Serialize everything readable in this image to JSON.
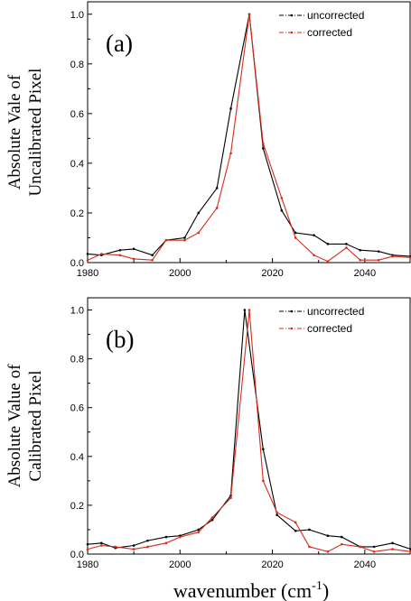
{
  "chart_data": [
    {
      "type": "line",
      "panel_label": "(a)",
      "ylabel_lines": [
        "Absolute Vale of",
        "Uncalibrated Pixel"
      ],
      "xlabel": "",
      "xlim": [
        1980,
        2050
      ],
      "ylim": [
        0,
        1.05
      ],
      "xticks": [
        "1980",
        "2000",
        "2020",
        "2040"
      ],
      "yticks": [
        "0.0",
        "0.2",
        "0.4",
        "0.6",
        "0.8",
        "1.0"
      ],
      "legend_position": "top-right",
      "series": [
        {
          "name": "uncorrected",
          "color": "#000000",
          "x": [
            1980,
            1983,
            1987,
            1990,
            1994,
            1997,
            2001,
            2004,
            2008,
            2011,
            2015,
            2018,
            2022,
            2025,
            2029,
            2032,
            2036,
            2039,
            2043,
            2046,
            2050
          ],
          "y": [
            0.035,
            0.03,
            0.05,
            0.055,
            0.03,
            0.09,
            0.1,
            0.2,
            0.3,
            0.62,
            1.0,
            0.46,
            0.21,
            0.12,
            0.11,
            0.075,
            0.075,
            0.05,
            0.045,
            0.03,
            0.025
          ]
        },
        {
          "name": "corrected",
          "color": "#d62c1a",
          "x": [
            1980,
            1983,
            1987,
            1990,
            1994,
            1997,
            2001,
            2004,
            2008,
            2011,
            2015,
            2018,
            2022,
            2025,
            2029,
            2032,
            2036,
            2039,
            2043,
            2046,
            2050
          ],
          "y": [
            0.01,
            0.035,
            0.03,
            0.015,
            0.01,
            0.09,
            0.09,
            0.12,
            0.22,
            0.44,
            1.0,
            0.48,
            0.26,
            0.1,
            0.03,
            0.005,
            0.06,
            0.01,
            0.01,
            0.025,
            0.02
          ]
        }
      ]
    },
    {
      "type": "line",
      "panel_label": "(b)",
      "ylabel_lines": [
        "Absolute Value of",
        "Calibrated Pixel"
      ],
      "xlabel": "wavenumber (cm",
      "xlabel_sup": "-1",
      "xlabel_end": ")",
      "xlim": [
        1980,
        2050
      ],
      "ylim": [
        0,
        1.05
      ],
      "xticks": [
        "1980",
        "2000",
        "2020",
        "2040"
      ],
      "yticks": [
        "0.0",
        "0.2",
        "0.4",
        "0.6",
        "0.8",
        "1.0"
      ],
      "legend_position": "top-right",
      "series": [
        {
          "name": "uncorrected",
          "color": "#000000",
          "x": [
            1980,
            1983,
            1986,
            1990,
            1993,
            1997,
            2000,
            2004,
            2007,
            2011,
            2014,
            2018,
            2021,
            2025,
            2028,
            2032,
            2035,
            2039,
            2042,
            2046,
            2050
          ],
          "y": [
            0.04,
            0.045,
            0.025,
            0.035,
            0.055,
            0.07,
            0.075,
            0.1,
            0.14,
            0.24,
            1.0,
            0.43,
            0.16,
            0.095,
            0.1,
            0.075,
            0.07,
            0.03,
            0.03,
            0.045,
            0.02
          ]
        },
        {
          "name": "corrected",
          "color": "#d62c1a",
          "x": [
            1980,
            1983,
            1986,
            1990,
            1993,
            1997,
            2000,
            2004,
            2007,
            2011,
            2015,
            2018,
            2021,
            2025,
            2028,
            2032,
            2035,
            2039,
            2042,
            2046,
            2050
          ],
          "y": [
            0.02,
            0.035,
            0.03,
            0.02,
            0.03,
            0.045,
            0.07,
            0.09,
            0.15,
            0.23,
            1.0,
            0.3,
            0.17,
            0.13,
            0.03,
            0.01,
            0.04,
            0.03,
            0.01,
            0.02,
            0.01
          ]
        }
      ]
    }
  ]
}
